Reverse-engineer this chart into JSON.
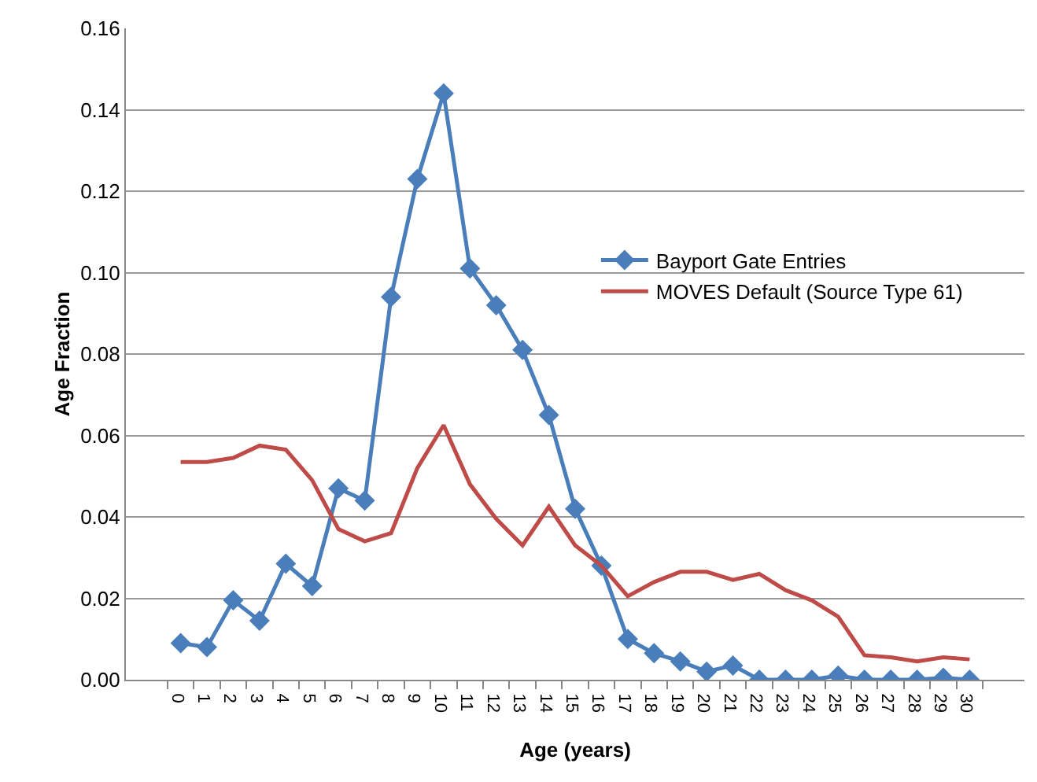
{
  "chart_data": {
    "type": "line",
    "xlabel": "Age (years)",
    "ylabel": "Age Fraction",
    "categories": [
      "0",
      "1",
      "2",
      "3",
      "4",
      "5",
      "6",
      "7",
      "8",
      "9",
      "10",
      "11",
      "12",
      "13",
      "14",
      "15",
      "16",
      "17",
      "18",
      "19",
      "20",
      "21",
      "22",
      "23",
      "24",
      "25",
      "26",
      "27",
      "28",
      "29",
      "30"
    ],
    "series": [
      {
        "name": "Bayport Gate Entries",
        "color": "#4a7ebb",
        "marker": "diamond",
        "values": [
          0.009,
          0.008,
          0.0195,
          0.0145,
          0.0285,
          0.023,
          0.047,
          0.044,
          0.094,
          0.123,
          0.144,
          0.101,
          0.092,
          0.081,
          0.065,
          0.042,
          0.028,
          0.01,
          0.0065,
          0.0045,
          0.002,
          0.0035,
          0,
          0,
          0,
          0.001,
          0,
          0,
          0,
          0.0005,
          0
        ]
      },
      {
        "name": "MOVES Default (Source Type 61)",
        "color": "#be4b48",
        "marker": "none",
        "values": [
          0.0535,
          0.0535,
          0.0545,
          0.0575,
          0.0565,
          0.049,
          0.037,
          0.034,
          0.036,
          0.052,
          0.0625,
          0.048,
          0.0395,
          0.033,
          0.0425,
          0.033,
          0.028,
          0.0205,
          0.024,
          0.0265,
          0.0265,
          0.0245,
          0.026,
          0.022,
          0.0195,
          0.0155,
          0.006,
          0.0055,
          0.0045,
          0.0055,
          0.005
        ]
      }
    ],
    "ylim": [
      0,
      0.16
    ],
    "yticks": [
      {
        "value": 0,
        "label": "0.00"
      },
      {
        "value": 0.02,
        "label": "0.02"
      },
      {
        "value": 0.04,
        "label": "0.04"
      },
      {
        "value": 0.06,
        "label": "0.06"
      },
      {
        "value": 0.08,
        "label": "0.08"
      },
      {
        "value": 0.1,
        "label": "0.10"
      },
      {
        "value": 0.12,
        "label": "0.12"
      },
      {
        "value": 0.14,
        "label": "0.14"
      },
      {
        "value": 0.16,
        "label": "0.16"
      }
    ],
    "grid": "y",
    "legend": "right",
    "line_style": "solid"
  }
}
